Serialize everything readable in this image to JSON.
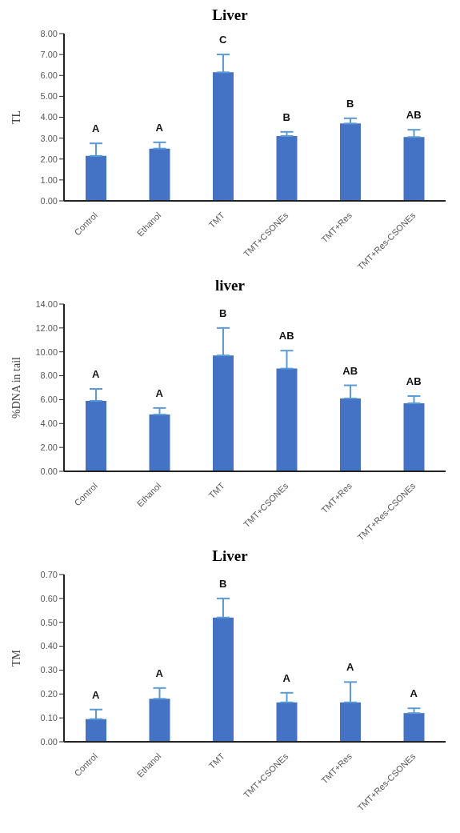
{
  "chart_data": [
    {
      "type": "bar",
      "title": "Liver",
      "ylabel": "TL",
      "categories": [
        "Control",
        "Ethanol",
        "TMT",
        "TMT+CSONEs",
        "TMT+Res",
        "TMT+Res-CSONEs"
      ],
      "values": [
        2.15,
        2.5,
        6.15,
        3.1,
        3.7,
        3.05
      ],
      "errors": [
        [
          2.15,
          2.75
        ],
        [
          2.5,
          2.8
        ],
        [
          6.15,
          7.0
        ],
        [
          3.1,
          3.3
        ],
        [
          3.7,
          3.95
        ],
        [
          3.05,
          3.4
        ]
      ],
      "color": "#4472c4",
      "ylim": [
        0,
        8
      ],
      "yticks": [
        {
          "value": 0,
          "label": "0.00"
        },
        {
          "value": 1,
          "label": "1.00"
        },
        {
          "value": 2,
          "label": "2.00"
        },
        {
          "value": 3,
          "label": "3.00"
        },
        {
          "value": 4,
          "label": "4.00"
        },
        {
          "value": 5,
          "label": "5.00"
        },
        {
          "value": 6,
          "label": "6.00"
        },
        {
          "value": 7,
          "label": "7.00"
        },
        {
          "value": 8,
          "label": "8.00"
        }
      ],
      "grid": false,
      "legend": false,
      "annotations": [
        "A",
        "A",
        "C",
        "B",
        "B",
        "AB"
      ]
    },
    {
      "type": "bar",
      "title": "liver",
      "ylabel": "%DNA in tail",
      "categories": [
        "Control",
        "Ethanol",
        "TMT",
        "TMT+CSONEs",
        "TMT+Res",
        "TMT+Res-CSONEs"
      ],
      "values": [
        5.9,
        4.75,
        9.7,
        8.6,
        6.1,
        5.7
      ],
      "errors": [
        [
          5.9,
          6.9
        ],
        [
          4.75,
          5.3
        ],
        [
          9.7,
          12.0
        ],
        [
          8.6,
          10.1
        ],
        [
          6.1,
          7.2
        ],
        [
          5.7,
          6.3
        ]
      ],
      "color": "#4472c4",
      "ylim": [
        0,
        14
      ],
      "yticks": [
        {
          "value": 0,
          "label": "0.00"
        },
        {
          "value": 2,
          "label": "2.00"
        },
        {
          "value": 4,
          "label": "4.00"
        },
        {
          "value": 6,
          "label": "6.00"
        },
        {
          "value": 8,
          "label": "8.00"
        },
        {
          "value": 10,
          "label": "10.00"
        },
        {
          "value": 12,
          "label": "12.00"
        },
        {
          "value": 14,
          "label": "14.00"
        }
      ],
      "grid": false,
      "legend": false,
      "annotations": [
        "A",
        "A",
        "B",
        "AB",
        "AB",
        "AB"
      ]
    },
    {
      "type": "bar",
      "title": "Liver",
      "ylabel": "TM",
      "categories": [
        "Control",
        "Ethanol",
        "TMT",
        "TMT+CSONEs",
        "TMT+Res",
        "TMT+Res-CSONEs"
      ],
      "values": [
        0.095,
        0.18,
        0.52,
        0.165,
        0.165,
        0.12
      ],
      "errors": [
        [
          0.095,
          0.135
        ],
        [
          0.18,
          0.225
        ],
        [
          0.52,
          0.6
        ],
        [
          0.165,
          0.205
        ],
        [
          0.165,
          0.25
        ],
        [
          0.12,
          0.14
        ]
      ],
      "color": "#4472c4",
      "ylim": [
        0,
        0.7
      ],
      "yticks": [
        {
          "value": 0,
          "label": "0.00"
        },
        {
          "value": 0.1,
          "label": "0.10"
        },
        {
          "value": 0.2,
          "label": "0.20"
        },
        {
          "value": 0.3,
          "label": "0.30"
        },
        {
          "value": 0.4,
          "label": "0.40"
        },
        {
          "value": 0.5,
          "label": "0.50"
        },
        {
          "value": 0.6,
          "label": "0.60"
        },
        {
          "value": 0.7,
          "label": "0.70"
        }
      ],
      "grid": false,
      "legend": false,
      "annotations": [
        "A",
        "A",
        "B",
        "A",
        "A",
        "A"
      ]
    }
  ]
}
